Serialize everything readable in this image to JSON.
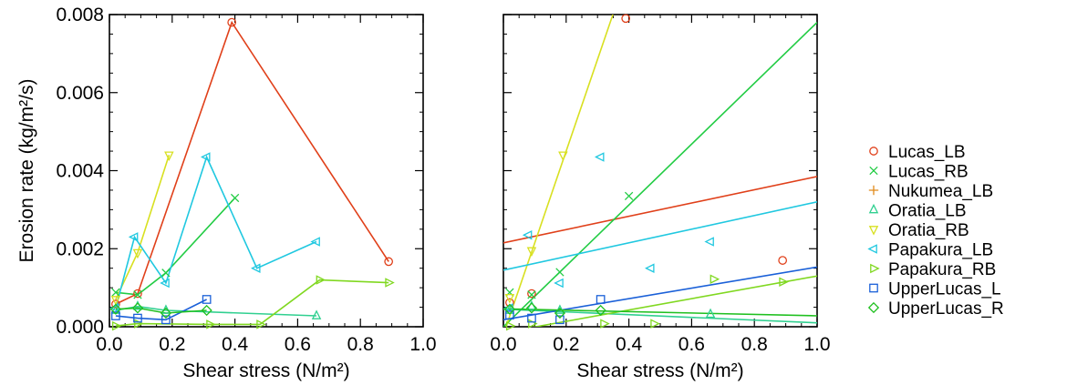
{
  "chart_data": [
    {
      "type": "line",
      "panel": "left",
      "xlabel": "Shear stress (N/m²)",
      "ylabel": "Erosion rate (kg/m²/s)",
      "xlim": [
        0,
        1.0
      ],
      "ylim": [
        0,
        0.008
      ],
      "xticks": [
        "0.0",
        "0.2",
        "0.4",
        "0.6",
        "0.8",
        "1.0"
      ],
      "yticks": [
        "0.000",
        "0.002",
        "0.004",
        "0.006",
        "0.008"
      ],
      "grid": false,
      "series": [
        {
          "name": "Lucas_LB",
          "color": "#e0401a",
          "marker": "circle",
          "points": [
            [
              0.02,
              0.00058
            ],
            [
              0.09,
              0.00085
            ],
            [
              0.39,
              0.0078
            ],
            [
              0.89,
              0.00167
            ]
          ]
        },
        {
          "name": "Lucas_RB",
          "color": "#22cc44",
          "marker": "x",
          "points": [
            [
              0.02,
              0.00088
            ],
            [
              0.09,
              0.00082
            ],
            [
              0.18,
              0.00138
            ],
            [
              0.4,
              0.0033
            ]
          ]
        },
        {
          "name": "Nukumea_LB",
          "color": "#e08a1a",
          "marker": "plus",
          "points": []
        },
        {
          "name": "Oratia_LB",
          "color": "#30d090",
          "marker": "triangle-up",
          "points": [
            [
              0.02,
              0.00042
            ],
            [
              0.09,
              0.00052
            ],
            [
              0.18,
              0.00042
            ],
            [
              0.66,
              0.00028
            ]
          ]
        },
        {
          "name": "Oratia_RB",
          "color": "#d8e020",
          "marker": "triangle-down",
          "points": [
            [
              0.02,
              0.0007
            ],
            [
              0.09,
              0.0019
            ],
            [
              0.19,
              0.0044
            ]
          ]
        },
        {
          "name": "Papakura_LB",
          "color": "#20c8e0",
          "marker": "triangle-left",
          "points": [
            [
              0.02,
              0.00048
            ],
            [
              0.08,
              0.0023
            ],
            [
              0.18,
              0.00112
            ],
            [
              0.31,
              0.00435
            ],
            [
              0.47,
              0.0015
            ],
            [
              0.66,
              0.00218
            ]
          ]
        },
        {
          "name": "Papakura_RB",
          "color": "#80d820",
          "marker": "triangle-right",
          "points": [
            [
              0.02,
              2e-05
            ],
            [
              0.09,
              8e-05
            ],
            [
              0.32,
              6e-05
            ],
            [
              0.48,
              6e-05
            ],
            [
              0.67,
              0.0012
            ],
            [
              0.89,
              0.00113
            ]
          ]
        },
        {
          "name": "UpperLucas_L",
          "color": "#1a60d8",
          "marker": "square",
          "points": [
            [
              0.02,
              0.00028
            ],
            [
              0.09,
              0.00022
            ],
            [
              0.18,
              0.00018
            ],
            [
              0.31,
              0.0007
            ]
          ]
        },
        {
          "name": "UpperLucas_R",
          "color": "#20c020",
          "marker": "diamond",
          "points": [
            [
              0.02,
              0.00045
            ],
            [
              0.09,
              0.00048
            ],
            [
              0.18,
              0.00035
            ],
            [
              0.31,
              0.00042
            ]
          ]
        }
      ]
    },
    {
      "type": "scatter",
      "panel": "right",
      "xlabel": "Shear stress (N/m²)",
      "ylabel": "",
      "xlim": [
        0,
        1.0
      ],
      "ylim": [
        0,
        0.008
      ],
      "xticks": [
        "0.0",
        "0.2",
        "0.4",
        "0.6",
        "0.8",
        "1.0"
      ],
      "yticks": [],
      "grid": false,
      "series": [
        {
          "name": "Lucas_LB",
          "color": "#e0401a",
          "marker": "circle",
          "points": [
            [
              0.02,
              0.00062
            ],
            [
              0.09,
              0.00085
            ],
            [
              0.39,
              0.0079
            ],
            [
              0.89,
              0.0017
            ]
          ],
          "fit": [
            0.00215,
            0.0017
          ]
        },
        {
          "name": "Lucas_RB",
          "color": "#22cc44",
          "marker": "x",
          "points": [
            [
              0.02,
              0.00088
            ],
            [
              0.09,
              0.00082
            ],
            [
              0.18,
              0.0014
            ],
            [
              0.4,
              0.00335
            ]
          ],
          "fit": [
            0.0,
            0.0078
          ]
        },
        {
          "name": "Nukumea_LB",
          "color": "#e08a1a",
          "marker": "plus",
          "points": []
        },
        {
          "name": "Oratia_LB",
          "color": "#30d090",
          "marker": "triangle-up",
          "points": [
            [
              0.02,
              0.00042
            ],
            [
              0.09,
              0.00052
            ],
            [
              0.18,
              0.00042
            ],
            [
              0.66,
              0.00032
            ]
          ],
          "fit": [
            0.00045,
            -0.00035
          ]
        },
        {
          "name": "Oratia_RB",
          "color": "#d8e020",
          "marker": "triangle-down",
          "points": [
            [
              0.02,
              0.00075
            ],
            [
              0.09,
              0.00195
            ],
            [
              0.19,
              0.0044
            ]
          ],
          "fit": [
            -0.0002,
            0.0235
          ]
        },
        {
          "name": "Papakura_LB",
          "color": "#20c8e0",
          "marker": "triangle-left",
          "points": [
            [
              0.02,
              0.00048
            ],
            [
              0.08,
              0.00235
            ],
            [
              0.18,
              0.00112
            ],
            [
              0.31,
              0.00435
            ],
            [
              0.47,
              0.0015
            ],
            [
              0.66,
              0.00218
            ]
          ],
          "fit": [
            0.00145,
            0.00175
          ]
        },
        {
          "name": "Papakura_RB",
          "color": "#80d820",
          "marker": "triangle-right",
          "points": [
            [
              0.02,
              2e-05
            ],
            [
              0.09,
              8e-05
            ],
            [
              0.32,
              8e-05
            ],
            [
              0.48,
              8e-05
            ],
            [
              0.67,
              0.00122
            ],
            [
              0.89,
              0.00115
            ]
          ],
          "fit": [
            -0.00015,
            0.00145
          ]
        },
        {
          "name": "UpperLucas_L",
          "color": "#1a60d8",
          "marker": "square",
          "points": [
            [
              0.02,
              0.0003
            ],
            [
              0.09,
              0.00022
            ],
            [
              0.18,
              0.00018
            ],
            [
              0.31,
              0.0007
            ]
          ],
          "fit": [
            0.00018,
            0.00135
          ]
        },
        {
          "name": "UpperLucas_R",
          "color": "#20c020",
          "marker": "diamond",
          "points": [
            [
              0.02,
              0.00045
            ],
            [
              0.09,
              0.00048
            ],
            [
              0.18,
              0.00035
            ],
            [
              0.31,
              0.00042
            ]
          ],
          "fit": [
            0.00046,
            -0.00018
          ]
        }
      ]
    }
  ],
  "legend": {
    "placement": "right",
    "entries": [
      {
        "name": "Lucas_LB",
        "color": "#e0401a",
        "marker": "circle"
      },
      {
        "name": "Lucas_RB",
        "color": "#22cc44",
        "marker": "x"
      },
      {
        "name": "Nukumea_LB",
        "color": "#e08a1a",
        "marker": "plus"
      },
      {
        "name": "Oratia_LB",
        "color": "#30d090",
        "marker": "triangle-up"
      },
      {
        "name": "Oratia_RB",
        "color": "#d8e020",
        "marker": "triangle-down"
      },
      {
        "name": "Papakura_LB",
        "color": "#20c8e0",
        "marker": "triangle-left"
      },
      {
        "name": "Papakura_RB",
        "color": "#80d820",
        "marker": "triangle-right"
      },
      {
        "name": "UpperLucas_L",
        "color": "#1a60d8",
        "marker": "square"
      },
      {
        "name": "UpperLucas_R",
        "color": "#20c020",
        "marker": "diamond"
      }
    ]
  }
}
